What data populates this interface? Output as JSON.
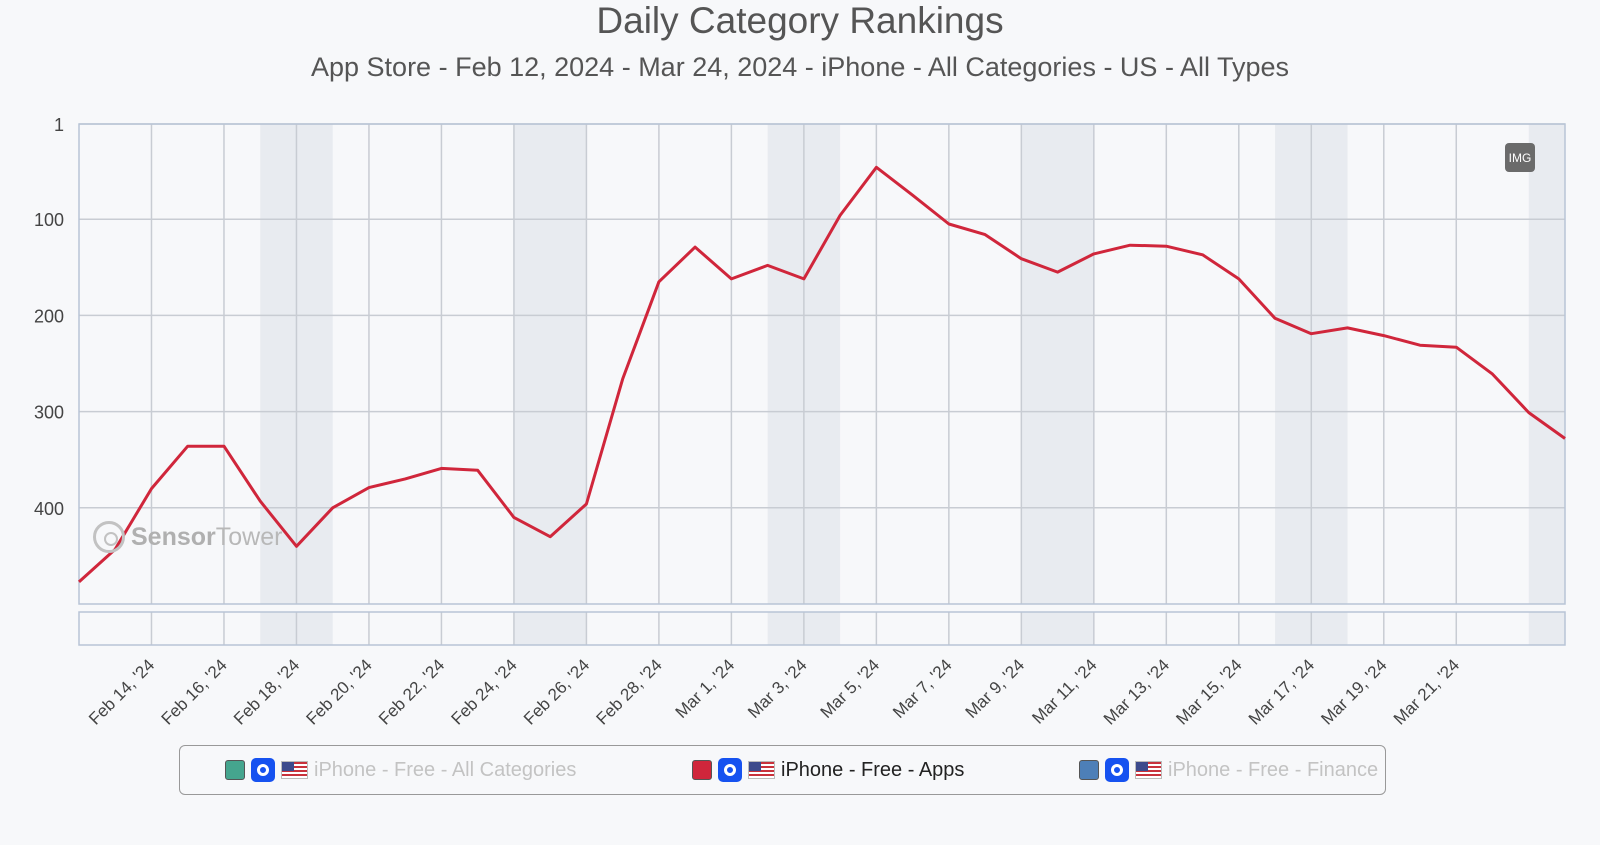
{
  "chart_data": {
    "type": "line",
    "title": "Daily Category Rankings",
    "subtitle": "App Store - Feb 12, 2024 - Mar 24, 2024 - iPhone - All Categories - US - All Types",
    "y_axis": {
      "reversed": true,
      "ticks": [
        1,
        100,
        200,
        300,
        400
      ],
      "ylim": [
        1,
        500
      ]
    },
    "x_axis": {
      "start_date": "2024-02-12",
      "end_date": "2024-03-24",
      "tick_labels": [
        "Feb 14, '24",
        "Feb 16, '24",
        "Feb 18, '24",
        "Feb 20, '24",
        "Feb 22, '24",
        "Feb 24, '24",
        "Feb 26, '24",
        "Feb 28, '24",
        "Mar 1, '24",
        "Mar 3, '24",
        "Mar 5, '24",
        "Mar 7, '24",
        "Mar 9, '24",
        "Mar 11, '24",
        "Mar 13, '24",
        "Mar 15, '24",
        "Mar 17, '24",
        "Mar 19, '24",
        "Mar 21, '24"
      ]
    },
    "grid": true,
    "legend_placement": "bottom",
    "series": [
      {
        "name": "iPhone - Free - All Categories",
        "color": "#45a58e",
        "active": false,
        "values": []
      },
      {
        "name": "iPhone - Free - Apps",
        "color": "#d0263b",
        "active": true,
        "x": [
          "2024-02-12",
          "2024-02-13",
          "2024-02-14",
          "2024-02-15",
          "2024-02-16",
          "2024-02-17",
          "2024-02-18",
          "2024-02-19",
          "2024-02-20",
          "2024-02-21",
          "2024-02-22",
          "2024-02-23",
          "2024-02-24",
          "2024-02-25",
          "2024-02-26",
          "2024-02-27",
          "2024-02-28",
          "2024-02-29",
          "2024-03-01",
          "2024-03-02",
          "2024-03-03",
          "2024-03-04",
          "2024-03-05",
          "2024-03-06",
          "2024-03-07",
          "2024-03-08",
          "2024-03-09",
          "2024-03-10",
          "2024-03-11",
          "2024-03-12",
          "2024-03-13",
          "2024-03-14",
          "2024-03-15",
          "2024-03-16",
          "2024-03-17",
          "2024-03-18",
          "2024-03-19",
          "2024-03-20",
          "2024-03-21",
          "2024-03-22",
          "2024-03-23",
          "2024-03-24"
        ],
        "values": [
          477,
          443,
          380,
          336,
          336,
          393,
          440,
          400,
          379,
          370,
          359,
          361,
          410,
          430,
          396,
          266,
          165,
          129,
          162,
          148,
          162,
          96,
          46,
          75,
          105,
          116,
          141,
          155,
          136,
          127,
          128,
          137,
          162,
          203,
          219,
          213,
          221,
          231,
          233,
          261,
          301,
          328
        ]
      },
      {
        "name": "iPhone - Free - Finance",
        "color": "#4d7fb8",
        "active": false,
        "values": []
      }
    ]
  },
  "controls": {
    "image_button": "IMG"
  },
  "watermark": {
    "brand_bold": "Sensor",
    "brand_light": "Tower"
  },
  "icons": {
    "app": "coinbase-app-icon",
    "flag": "us-flag-icon"
  }
}
